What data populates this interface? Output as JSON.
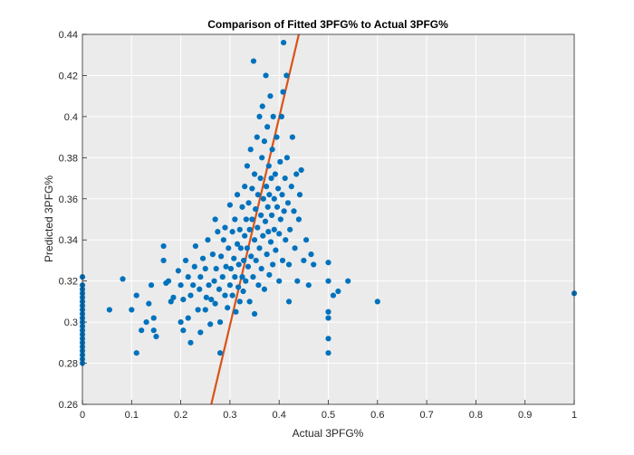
{
  "chart_data": {
    "type": "scatter",
    "title": "Comparison of Fitted 3PFG% to Actual 3PFG%",
    "xlabel": "Actual 3PFG%",
    "ylabel": "Predicted 3PFG%",
    "xlim": [
      0,
      1
    ],
    "ylim": [
      0.26,
      0.44
    ],
    "xticks": [
      0,
      0.1,
      0.2,
      0.3,
      0.4,
      0.5,
      0.6,
      0.7,
      0.8,
      0.9,
      1
    ],
    "yticks": [
      0.26,
      0.28,
      0.3,
      0.32,
      0.34,
      0.36,
      0.38,
      0.4,
      0.42,
      0.44
    ],
    "grid": true,
    "colors": {
      "points": "#0072BD",
      "fit_line": "#D95319",
      "axes_bg": "#EBEBEB",
      "grid": "#FFFFFF",
      "frame": "#262626"
    },
    "series": [
      {
        "name": "observations",
        "points": [
          [
            0,
            0.28
          ],
          [
            0,
            0.282
          ],
          [
            0,
            0.284
          ],
          [
            0,
            0.286
          ],
          [
            0,
            0.288
          ],
          [
            0,
            0.29
          ],
          [
            0,
            0.292
          ],
          [
            0,
            0.294
          ],
          [
            0,
            0.296
          ],
          [
            0,
            0.298
          ],
          [
            0,
            0.3
          ],
          [
            0,
            0.302
          ],
          [
            0,
            0.304
          ],
          [
            0,
            0.306
          ],
          [
            0,
            0.308
          ],
          [
            0,
            0.31
          ],
          [
            0,
            0.312
          ],
          [
            0,
            0.314
          ],
          [
            0,
            0.316
          ],
          [
            0,
            0.318
          ],
          [
            0,
            0.322
          ],
          [
            0.055,
            0.306
          ],
          [
            0.082,
            0.321
          ],
          [
            0.1,
            0.306
          ],
          [
            0.11,
            0.285
          ],
          [
            0.11,
            0.313
          ],
          [
            0.12,
            0.296
          ],
          [
            0.13,
            0.3
          ],
          [
            0.135,
            0.309
          ],
          [
            0.14,
            0.318
          ],
          [
            0.145,
            0.302
          ],
          [
            0.145,
            0.296
          ],
          [
            0.15,
            0.293
          ],
          [
            0.165,
            0.337
          ],
          [
            0.165,
            0.33
          ],
          [
            0.17,
            0.319
          ],
          [
            0.175,
            0.32
          ],
          [
            0.18,
            0.31
          ],
          [
            0.185,
            0.312
          ],
          [
            0.195,
            0.325
          ],
          [
            0.2,
            0.318
          ],
          [
            0.2,
            0.3
          ],
          [
            0.205,
            0.296
          ],
          [
            0.205,
            0.311
          ],
          [
            0.21,
            0.33
          ],
          [
            0.215,
            0.302
          ],
          [
            0.215,
            0.322
          ],
          [
            0.22,
            0.29
          ],
          [
            0.22,
            0.313
          ],
          [
            0.225,
            0.318
          ],
          [
            0.228,
            0.327
          ],
          [
            0.23,
            0.337
          ],
          [
            0.235,
            0.306
          ],
          [
            0.238,
            0.316
          ],
          [
            0.24,
            0.295
          ],
          [
            0.24,
            0.322
          ],
          [
            0.245,
            0.331
          ],
          [
            0.25,
            0.326
          ],
          [
            0.25,
            0.306
          ],
          [
            0.252,
            0.312
          ],
          [
            0.255,
            0.34
          ],
          [
            0.257,
            0.318
          ],
          [
            0.26,
            0.299
          ],
          [
            0.262,
            0.311
          ],
          [
            0.265,
            0.333
          ],
          [
            0.268,
            0.32
          ],
          [
            0.27,
            0.309
          ],
          [
            0.27,
            0.35
          ],
          [
            0.272,
            0.326
          ],
          [
            0.275,
            0.344
          ],
          [
            0.278,
            0.316
          ],
          [
            0.28,
            0.3
          ],
          [
            0.28,
            0.285
          ],
          [
            0.282,
            0.332
          ],
          [
            0.285,
            0.322
          ],
          [
            0.287,
            0.34
          ],
          [
            0.29,
            0.313
          ],
          [
            0.29,
            0.346
          ],
          [
            0.292,
            0.327
          ],
          [
            0.295,
            0.307
          ],
          [
            0.297,
            0.336
          ],
          [
            0.3,
            0.318
          ],
          [
            0.3,
            0.357
          ],
          [
            0.302,
            0.326
          ],
          [
            0.305,
            0.313
          ],
          [
            0.305,
            0.344
          ],
          [
            0.308,
            0.331
          ],
          [
            0.31,
            0.35
          ],
          [
            0.31,
            0.322
          ],
          [
            0.312,
            0.305
          ],
          [
            0.315,
            0.338
          ],
          [
            0.315,
            0.362
          ],
          [
            0.317,
            0.317
          ],
          [
            0.318,
            0.328
          ],
          [
            0.32,
            0.345
          ],
          [
            0.32,
            0.31
          ],
          [
            0.322,
            0.336
          ],
          [
            0.325,
            0.322
          ],
          [
            0.325,
            0.356
          ],
          [
            0.327,
            0.315
          ],
          [
            0.328,
            0.33
          ],
          [
            0.33,
            0.342
          ],
          [
            0.33,
            0.366
          ],
          [
            0.332,
            0.32
          ],
          [
            0.333,
            0.35
          ],
          [
            0.335,
            0.336
          ],
          [
            0.335,
            0.376
          ],
          [
            0.337,
            0.327
          ],
          [
            0.338,
            0.358
          ],
          [
            0.34,
            0.31
          ],
          [
            0.34,
            0.345
          ],
          [
            0.342,
            0.384
          ],
          [
            0.343,
            0.332
          ],
          [
            0.345,
            0.35
          ],
          [
            0.345,
            0.365
          ],
          [
            0.347,
            0.322
          ],
          [
            0.348,
            0.427
          ],
          [
            0.35,
            0.34
          ],
          [
            0.35,
            0.372
          ],
          [
            0.35,
            0.304
          ],
          [
            0.352,
            0.355
          ],
          [
            0.353,
            0.33
          ],
          [
            0.355,
            0.39
          ],
          [
            0.356,
            0.346
          ],
          [
            0.357,
            0.362
          ],
          [
            0.358,
            0.318
          ],
          [
            0.36,
            0.336
          ],
          [
            0.36,
            0.4
          ],
          [
            0.362,
            0.37
          ],
          [
            0.363,
            0.352
          ],
          [
            0.364,
            0.326
          ],
          [
            0.365,
            0.38
          ],
          [
            0.366,
            0.405
          ],
          [
            0.367,
            0.342
          ],
          [
            0.368,
            0.36
          ],
          [
            0.37,
            0.316
          ],
          [
            0.37,
            0.388
          ],
          [
            0.372,
            0.349
          ],
          [
            0.373,
            0.42
          ],
          [
            0.374,
            0.366
          ],
          [
            0.375,
            0.333
          ],
          [
            0.376,
            0.395
          ],
          [
            0.377,
            0.356
          ],
          [
            0.378,
            0.344
          ],
          [
            0.379,
            0.376
          ],
          [
            0.38,
            0.323
          ],
          [
            0.38,
            0.362
          ],
          [
            0.382,
            0.41
          ],
          [
            0.383,
            0.339
          ],
          [
            0.384,
            0.37
          ],
          [
            0.385,
            0.352
          ],
          [
            0.386,
            0.384
          ],
          [
            0.387,
            0.328
          ],
          [
            0.388,
            0.4
          ],
          [
            0.39,
            0.36
          ],
          [
            0.39,
            0.345
          ],
          [
            0.392,
            0.372
          ],
          [
            0.393,
            0.335
          ],
          [
            0.395,
            0.39
          ],
          [
            0.396,
            0.356
          ],
          [
            0.398,
            0.365
          ],
          [
            0.4,
            0.32
          ],
          [
            0.4,
            0.343
          ],
          [
            0.402,
            0.378
          ],
          [
            0.403,
            0.35
          ],
          [
            0.405,
            0.4
          ],
          [
            0.406,
            0.362
          ],
          [
            0.407,
            0.33
          ],
          [
            0.408,
            0.412
          ],
          [
            0.409,
            0.436
          ],
          [
            0.41,
            0.354
          ],
          [
            0.412,
            0.37
          ],
          [
            0.413,
            0.34
          ],
          [
            0.415,
            0.42
          ],
          [
            0.416,
            0.38
          ],
          [
            0.418,
            0.358
          ],
          [
            0.42,
            0.328
          ],
          [
            0.42,
            0.31
          ],
          [
            0.422,
            0.345
          ],
          [
            0.425,
            0.366
          ],
          [
            0.427,
            0.39
          ],
          [
            0.43,
            0.354
          ],
          [
            0.432,
            0.336
          ],
          [
            0.435,
            0.372
          ],
          [
            0.437,
            0.32
          ],
          [
            0.44,
            0.35
          ],
          [
            0.442,
            0.362
          ],
          [
            0.445,
            0.374
          ],
          [
            0.45,
            0.33
          ],
          [
            0.455,
            0.34
          ],
          [
            0.46,
            0.318
          ],
          [
            0.465,
            0.333
          ],
          [
            0.47,
            0.328
          ],
          [
            0.5,
            0.329
          ],
          [
            0.5,
            0.32
          ],
          [
            0.5,
            0.305
          ],
          [
            0.5,
            0.302
          ],
          [
            0.5,
            0.292
          ],
          [
            0.5,
            0.285
          ],
          [
            0.51,
            0.313
          ],
          [
            0.52,
            0.315
          ],
          [
            0.54,
            0.32
          ],
          [
            0.6,
            0.31
          ],
          [
            1.0,
            0.314
          ]
        ]
      },
      {
        "name": "fit",
        "type": "line",
        "points": [
          [
            0.262,
            0.26
          ],
          [
            0.44,
            0.44
          ]
        ]
      }
    ]
  }
}
